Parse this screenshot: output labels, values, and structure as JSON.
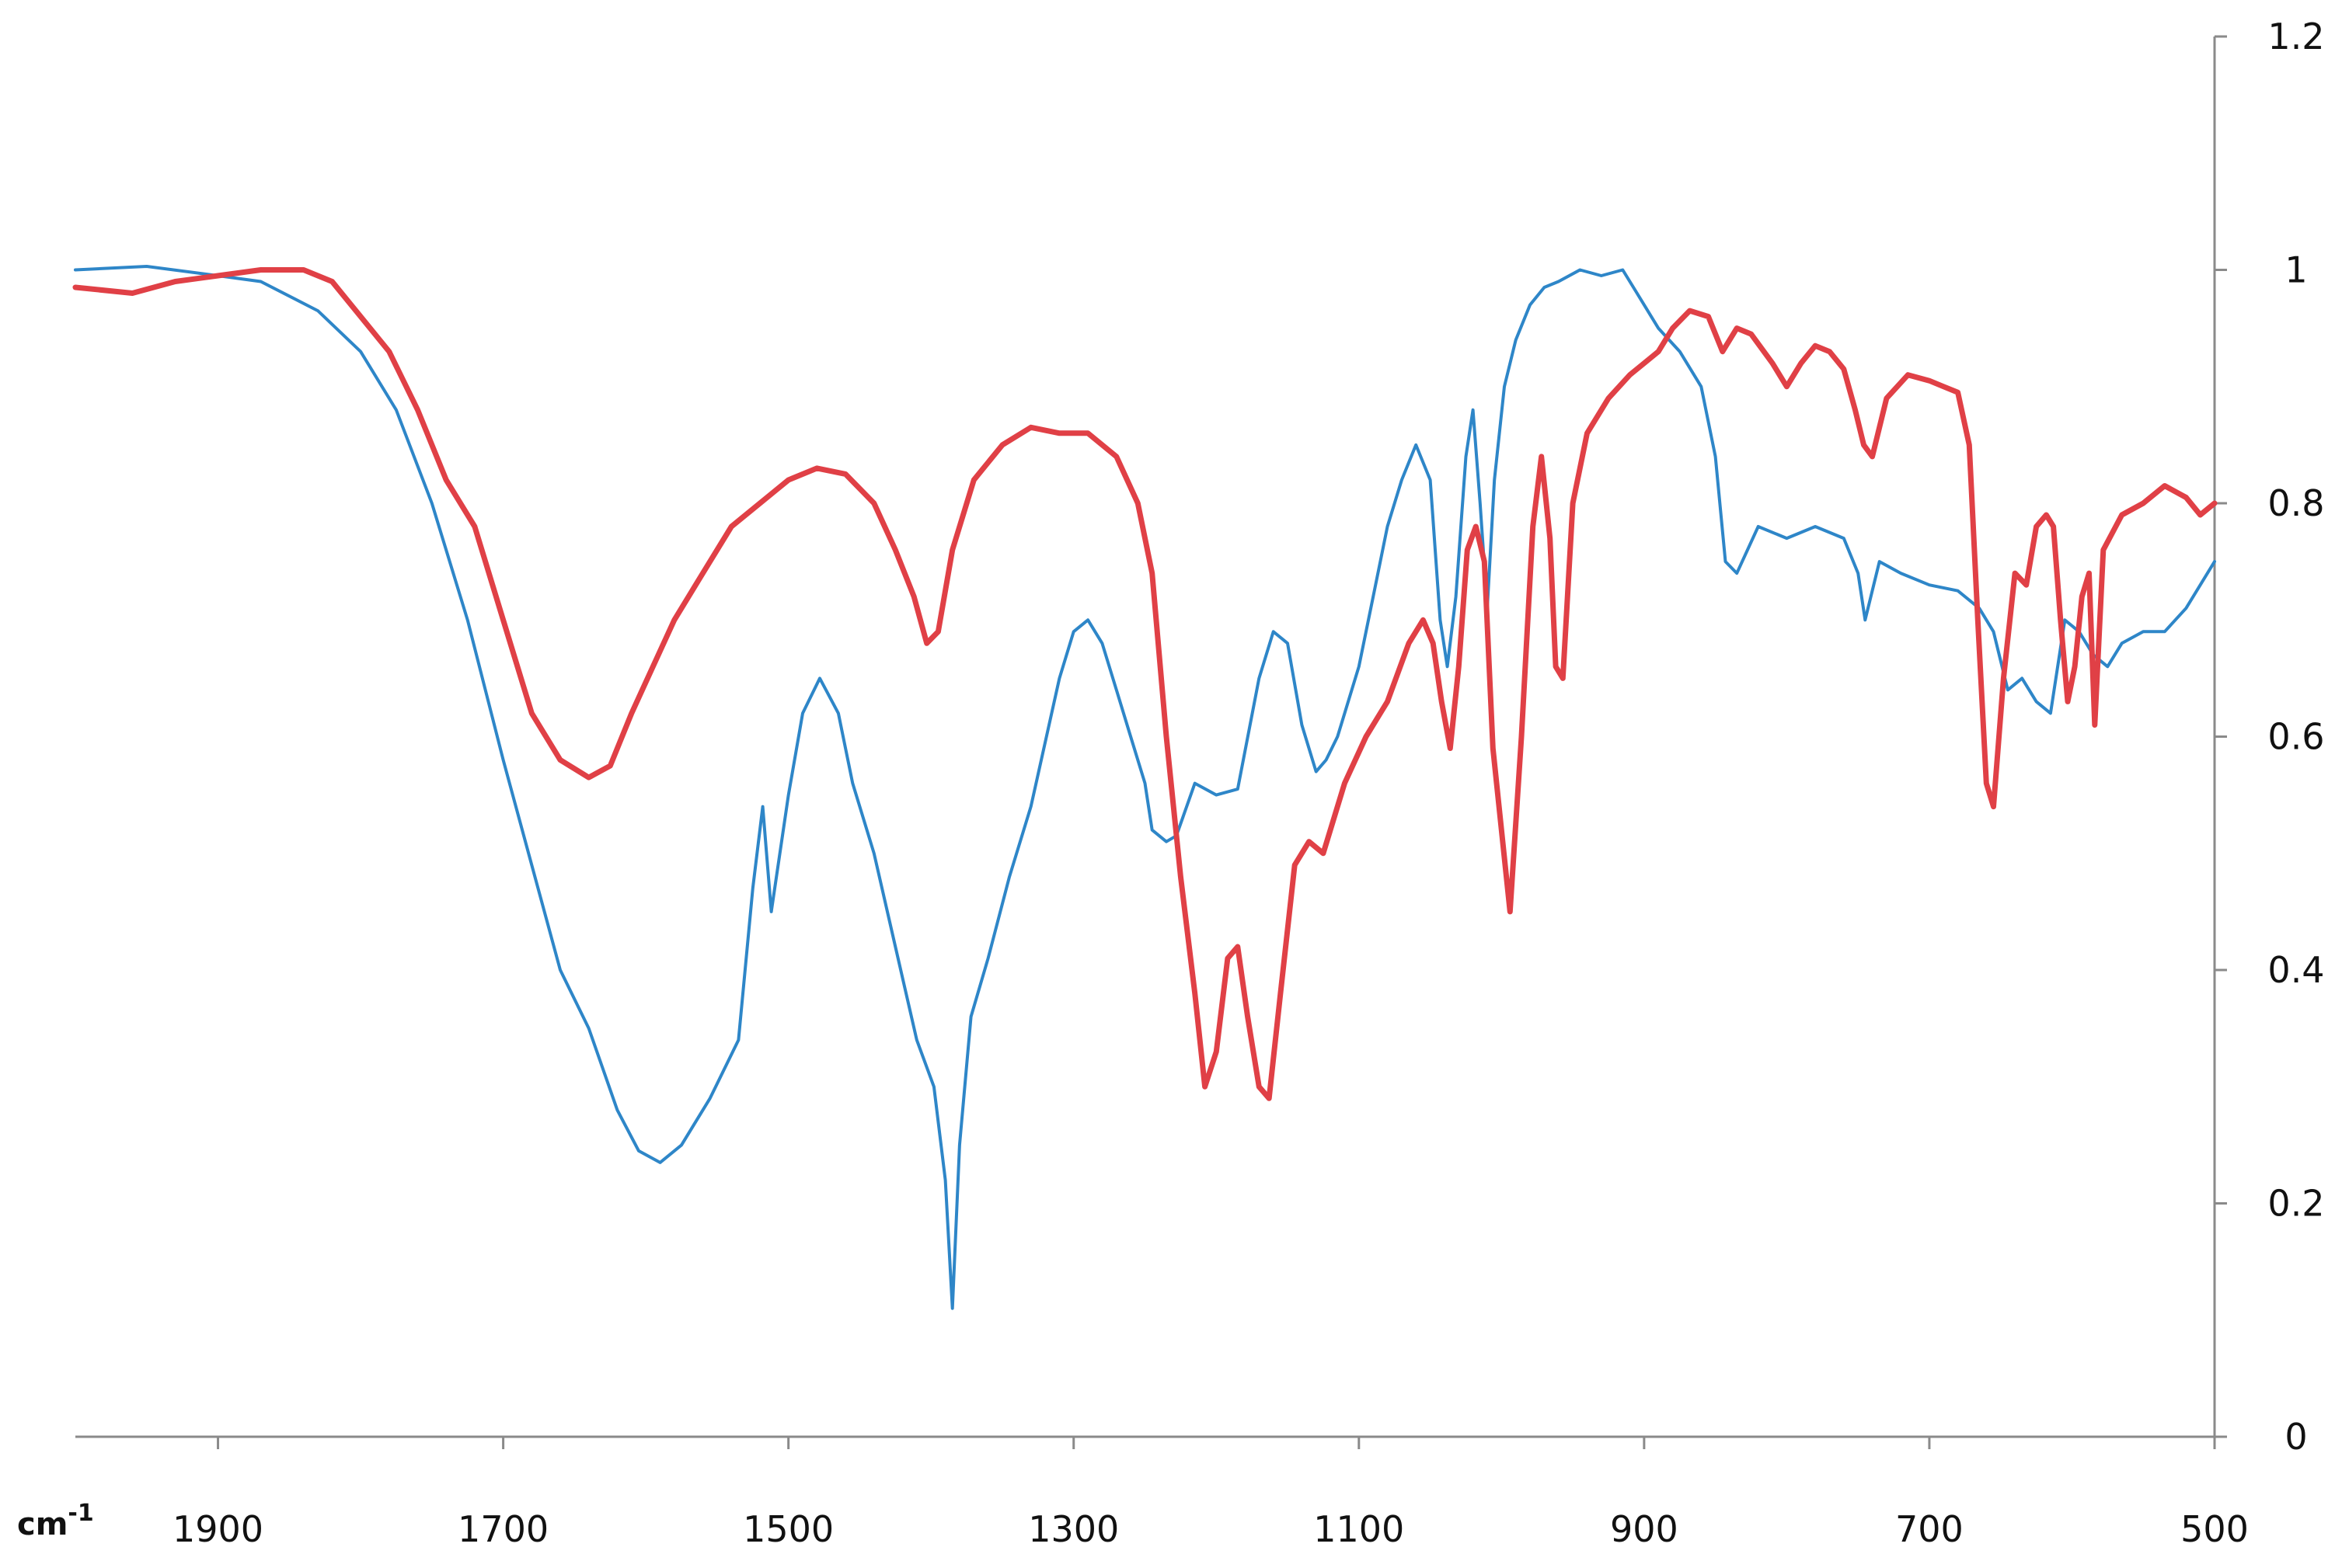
{
  "chart_data": {
    "type": "line",
    "x_unit_label": "cm",
    "x_unit_exponent": "-1",
    "x_reversed": true,
    "xlim": [
      2000,
      500
    ],
    "ylim": [
      0,
      1.2
    ],
    "y_axis_side": "right",
    "grid": false,
    "x_ticks": [
      1900,
      1700,
      1500,
      1300,
      1100,
      900,
      700,
      500
    ],
    "x_tick_labels": [
      "1900",
      "1700",
      "1500",
      "1300",
      "1100",
      "900",
      "700",
      "500"
    ],
    "y_ticks": [
      0,
      0.2,
      0.4,
      0.6,
      0.8,
      1,
      1.2
    ],
    "y_tick_labels": [
      "0",
      "0.2",
      "0.4",
      "0.6",
      "0.8",
      "1",
      "1.2"
    ],
    "series": [
      {
        "color": "#2e86c8",
        "x": [
          2000,
          1950,
          1900,
          1870,
          1830,
          1800,
          1775,
          1750,
          1725,
          1700,
          1680,
          1660,
          1640,
          1620,
          1605,
          1590,
          1575,
          1555,
          1535,
          1525,
          1518,
          1512,
          1500,
          1490,
          1478,
          1465,
          1455,
          1440,
          1425,
          1410,
          1398,
          1390,
          1385,
          1380,
          1372,
          1360,
          1345,
          1330,
          1310,
          1300,
          1290,
          1280,
          1270,
          1260,
          1250,
          1245,
          1235,
          1228,
          1215,
          1200,
          1185,
          1170,
          1160,
          1150,
          1140,
          1130,
          1123,
          1115,
          1100,
          1090,
          1080,
          1070,
          1060,
          1050,
          1043,
          1038,
          1032,
          1025,
          1020,
          1015,
          1010,
          1005,
          998,
          990,
          980,
          970,
          960,
          945,
          930,
          915,
          905,
          890,
          875,
          860,
          850,
          843,
          835,
          820,
          800,
          780,
          760,
          750,
          745,
          735,
          720,
          700,
          680,
          665,
          655,
          645,
          635,
          625,
          615,
          605,
          595,
          585,
          575,
          565,
          550,
          535,
          520,
          500
        ],
        "y": [
          1.0,
          1.003,
          0.995,
          0.99,
          0.965,
          0.93,
          0.88,
          0.8,
          0.7,
          0.58,
          0.49,
          0.4,
          0.35,
          0.28,
          0.245,
          0.235,
          0.25,
          0.29,
          0.34,
          0.47,
          0.54,
          0.45,
          0.55,
          0.62,
          0.65,
          0.62,
          0.56,
          0.5,
          0.42,
          0.34,
          0.3,
          0.22,
          0.11,
          0.25,
          0.36,
          0.41,
          0.48,
          0.54,
          0.65,
          0.69,
          0.7,
          0.68,
          0.64,
          0.6,
          0.56,
          0.52,
          0.51,
          0.515,
          0.56,
          0.55,
          0.555,
          0.65,
          0.69,
          0.68,
          0.61,
          0.57,
          0.58,
          0.6,
          0.66,
          0.72,
          0.78,
          0.82,
          0.85,
          0.82,
          0.7,
          0.66,
          0.72,
          0.84,
          0.88,
          0.8,
          0.71,
          0.82,
          0.9,
          0.94,
          0.97,
          0.985,
          0.99,
          1.0,
          0.995,
          1.0,
          0.98,
          0.95,
          0.93,
          0.9,
          0.84,
          0.75,
          0.74,
          0.78,
          0.77,
          0.78,
          0.77,
          0.74,
          0.7,
          0.75,
          0.74,
          0.73,
          0.725,
          0.71,
          0.69,
          0.64,
          0.65,
          0.63,
          0.62,
          0.7,
          0.69,
          0.67,
          0.66,
          0.68,
          0.69,
          0.69,
          0.71,
          0.75
        ]
      },
      {
        "color": "#e04046",
        "x": [
          2000,
          1960,
          1930,
          1900,
          1870,
          1840,
          1820,
          1800,
          1780,
          1760,
          1740,
          1720,
          1700,
          1680,
          1660,
          1640,
          1625,
          1610,
          1595,
          1580,
          1560,
          1540,
          1520,
          1500,
          1480,
          1460,
          1440,
          1425,
          1412,
          1403,
          1395,
          1385,
          1370,
          1350,
          1330,
          1310,
          1290,
          1270,
          1255,
          1245,
          1235,
          1225,
          1215,
          1208,
          1200,
          1192,
          1185,
          1178,
          1170,
          1163,
          1155,
          1145,
          1135,
          1125,
          1110,
          1095,
          1080,
          1065,
          1055,
          1048,
          1042,
          1036,
          1030,
          1024,
          1018,
          1012,
          1006,
          1000,
          994,
          986,
          978,
          972,
          966,
          962,
          957,
          950,
          940,
          925,
          910,
          900,
          890,
          880,
          868,
          855,
          845,
          835,
          825,
          810,
          800,
          790,
          780,
          770,
          760,
          752,
          746,
          740,
          730,
          715,
          700,
          690,
          680,
          672,
          666,
          660,
          655,
          648,
          640,
          632,
          625,
          618,
          613,
          608,
          603,
          598,
          593,
          588,
          584,
          578,
          565,
          550,
          535,
          520,
          510,
          500
        ],
        "y": [
          0.985,
          0.98,
          0.99,
          0.995,
          1.0,
          1.0,
          0.99,
          0.96,
          0.93,
          0.88,
          0.82,
          0.78,
          0.7,
          0.62,
          0.58,
          0.565,
          0.575,
          0.62,
          0.66,
          0.7,
          0.74,
          0.78,
          0.8,
          0.82,
          0.83,
          0.825,
          0.8,
          0.76,
          0.72,
          0.68,
          0.69,
          0.76,
          0.82,
          0.85,
          0.865,
          0.86,
          0.86,
          0.84,
          0.8,
          0.74,
          0.6,
          0.48,
          0.38,
          0.3,
          0.33,
          0.41,
          0.42,
          0.36,
          0.3,
          0.29,
          0.38,
          0.49,
          0.51,
          0.5,
          0.56,
          0.6,
          0.63,
          0.68,
          0.7,
          0.68,
          0.63,
          0.59,
          0.66,
          0.76,
          0.78,
          0.75,
          0.59,
          0.52,
          0.45,
          0.6,
          0.78,
          0.84,
          0.77,
          0.66,
          0.65,
          0.8,
          0.86,
          0.89,
          0.91,
          0.92,
          0.93,
          0.95,
          0.965,
          0.96,
          0.93,
          0.95,
          0.945,
          0.92,
          0.9,
          0.92,
          0.935,
          0.93,
          0.915,
          0.88,
          0.85,
          0.84,
          0.89,
          0.91,
          0.905,
          0.9,
          0.895,
          0.85,
          0.7,
          0.56,
          0.54,
          0.65,
          0.74,
          0.73,
          0.78,
          0.79,
          0.78,
          0.7,
          0.63,
          0.66,
          0.72,
          0.74,
          0.61,
          0.76,
          0.79,
          0.8,
          0.815,
          0.805,
          0.79,
          0.8
        ]
      }
    ]
  }
}
